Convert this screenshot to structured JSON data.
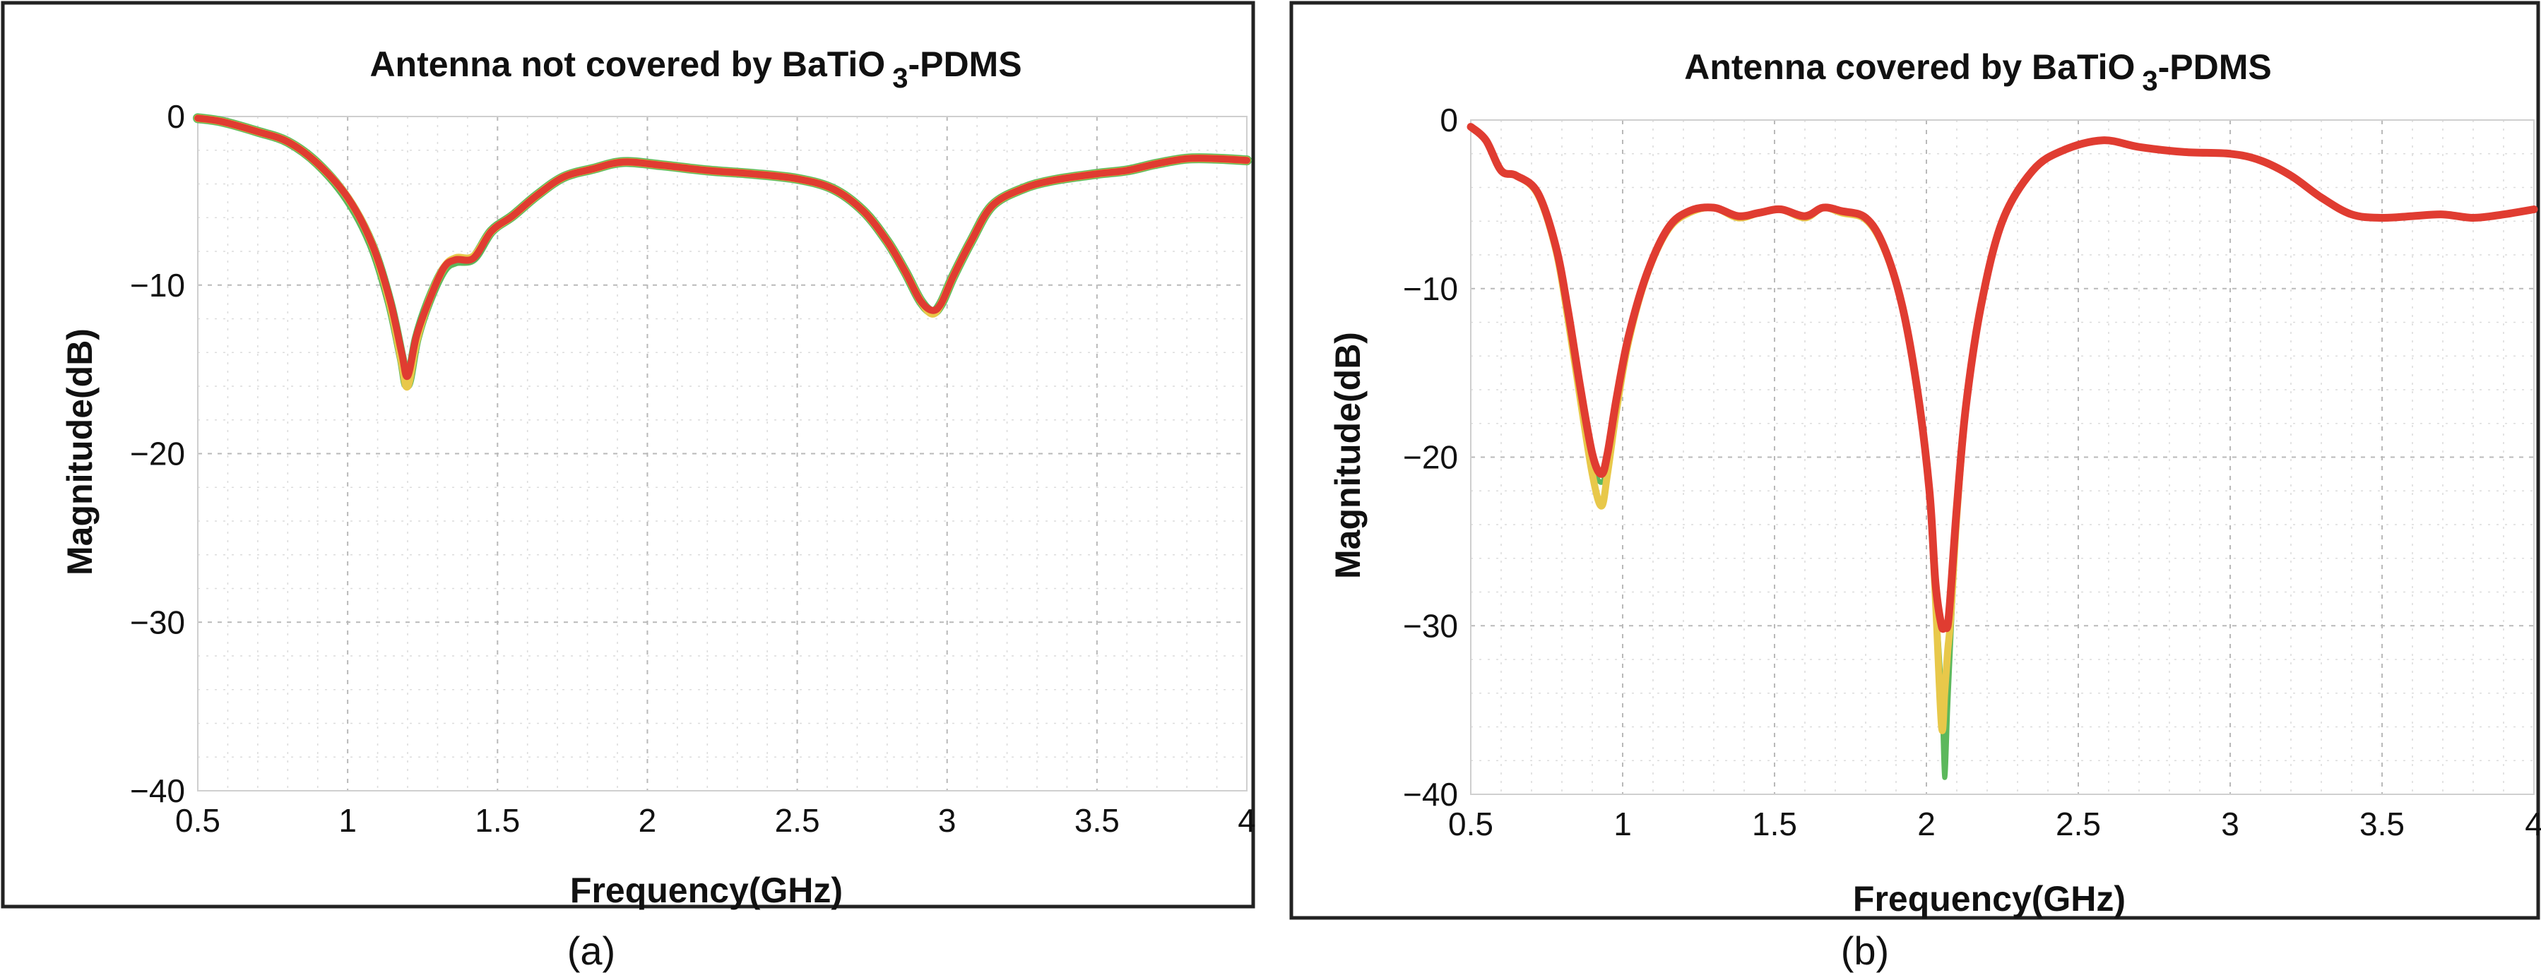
{
  "chart_data": [
    {
      "type": "line",
      "panel_label": "(a)",
      "title": "Antenna not covered by BaTiO",
      "title_subscript": "3",
      "title_suffix": "-PDMS",
      "xlabel": "Frequency(GHz)",
      "ylabel": "Magnitude(dB)",
      "xlim": [
        0.5,
        4
      ],
      "ylim": [
        -40,
        0
      ],
      "xticks": [
        0.5,
        1,
        1.5,
        2,
        2.5,
        3,
        3.5,
        4
      ],
      "xtick_labels": [
        "0.5",
        "1",
        "1.5",
        "2",
        "2.5",
        "3",
        "3.5",
        "4"
      ],
      "yticks": [
        0,
        -10,
        -20,
        -30,
        -40
      ],
      "ytick_labels": [
        "0",
        "−10",
        "−20",
        "−30",
        "−40"
      ],
      "grid": true,
      "series": [
        {
          "name": "trace-green",
          "color": "#5cb85c",
          "x": [
            0.5,
            0.58,
            0.7,
            0.8,
            0.9,
            1.0,
            1.08,
            1.14,
            1.18,
            1.2,
            1.23,
            1.27,
            1.32,
            1.36,
            1.42,
            1.48,
            1.55,
            1.63,
            1.72,
            1.82,
            1.92,
            2.05,
            2.2,
            2.35,
            2.5,
            2.62,
            2.72,
            2.8,
            2.86,
            2.91,
            2.95,
            2.98,
            3.02,
            3.08,
            3.15,
            3.25,
            3.35,
            3.5,
            3.6,
            3.7,
            3.8,
            3.9,
            4.0
          ],
          "y": [
            -0.1,
            -0.3,
            -0.9,
            -1.5,
            -2.8,
            -4.9,
            -7.6,
            -11.0,
            -14.3,
            -15.9,
            -13.2,
            -11.0,
            -9.1,
            -8.6,
            -8.4,
            -6.8,
            -5.9,
            -4.7,
            -3.6,
            -3.1,
            -2.7,
            -2.9,
            -3.2,
            -3.4,
            -3.7,
            -4.3,
            -5.6,
            -7.4,
            -9.2,
            -10.9,
            -11.6,
            -11.1,
            -9.5,
            -7.4,
            -5.3,
            -4.3,
            -3.8,
            -3.4,
            -3.2,
            -2.8,
            -2.5,
            -2.5,
            -2.6
          ]
        },
        {
          "name": "trace-yellow",
          "color": "#e8c84a",
          "x": [
            0.5,
            0.58,
            0.7,
            0.8,
            0.9,
            1.0,
            1.08,
            1.14,
            1.18,
            1.2,
            1.23,
            1.27,
            1.32,
            1.36,
            1.42,
            1.48,
            1.55,
            1.63,
            1.72,
            1.82,
            1.92,
            2.05,
            2.2,
            2.35,
            2.5,
            2.62,
            2.72,
            2.8,
            2.86,
            2.91,
            2.95,
            2.98,
            3.02,
            3.08,
            3.15,
            3.25,
            3.35,
            3.5,
            3.6,
            3.7,
            3.8,
            3.9,
            4.0
          ],
          "y": [
            -0.1,
            -0.3,
            -0.9,
            -1.5,
            -2.8,
            -4.8,
            -7.5,
            -11.0,
            -14.5,
            -16.0,
            -13.3,
            -11.0,
            -9.0,
            -8.4,
            -8.3,
            -6.8,
            -5.9,
            -4.7,
            -3.6,
            -3.1,
            -2.7,
            -2.9,
            -3.2,
            -3.4,
            -3.7,
            -4.3,
            -5.6,
            -7.4,
            -9.2,
            -10.9,
            -11.7,
            -11.1,
            -9.5,
            -7.4,
            -5.3,
            -4.3,
            -3.8,
            -3.4,
            -3.2,
            -2.8,
            -2.5,
            -2.5,
            -2.6
          ]
        },
        {
          "name": "trace-red",
          "color": "#e03c31",
          "x": [
            0.5,
            0.58,
            0.7,
            0.8,
            0.9,
            1.0,
            1.08,
            1.14,
            1.18,
            1.2,
            1.23,
            1.27,
            1.32,
            1.36,
            1.42,
            1.48,
            1.55,
            1.63,
            1.72,
            1.82,
            1.92,
            2.05,
            2.2,
            2.35,
            2.5,
            2.62,
            2.72,
            2.8,
            2.86,
            2.91,
            2.95,
            2.98,
            3.02,
            3.08,
            3.15,
            3.25,
            3.35,
            3.5,
            3.6,
            3.7,
            3.8,
            3.9,
            4.0
          ],
          "y": [
            -0.1,
            -0.3,
            -0.9,
            -1.5,
            -2.8,
            -4.8,
            -7.5,
            -10.8,
            -14.0,
            -15.4,
            -13.0,
            -11.0,
            -9.0,
            -8.5,
            -8.4,
            -6.8,
            -5.9,
            -4.7,
            -3.6,
            -3.1,
            -2.7,
            -2.9,
            -3.2,
            -3.4,
            -3.7,
            -4.3,
            -5.6,
            -7.4,
            -9.2,
            -10.9,
            -11.5,
            -11.1,
            -9.5,
            -7.4,
            -5.3,
            -4.3,
            -3.8,
            -3.4,
            -3.2,
            -2.8,
            -2.5,
            -2.5,
            -2.6
          ]
        }
      ]
    },
    {
      "type": "line",
      "panel_label": "(b)",
      "title": "Antenna covered by BaTiO",
      "title_subscript": "3",
      "title_suffix": "-PDMS",
      "xlabel": "Frequency(GHz)",
      "ylabel": "Magnitude(dB)",
      "xlim": [
        0.5,
        4
      ],
      "ylim": [
        -40,
        0
      ],
      "xticks": [
        0.5,
        1,
        1.5,
        2,
        2.5,
        3,
        3.5,
        4
      ],
      "xtick_labels": [
        "0.5",
        "1",
        "1.5",
        "2",
        "2.5",
        "3",
        "3.5",
        "4"
      ],
      "yticks": [
        0,
        -10,
        -20,
        -30,
        -40
      ],
      "ytick_labels": [
        "0",
        "−10",
        "−20",
        "−30",
        "−40"
      ],
      "grid": true,
      "series": [
        {
          "name": "trace-green",
          "color": "#5cb85c",
          "x": [
            0.5,
            0.55,
            0.6,
            0.65,
            0.72,
            0.78,
            0.82,
            0.86,
            0.9,
            0.93,
            0.95,
            0.98,
            1.02,
            1.08,
            1.15,
            1.22,
            1.3,
            1.38,
            1.45,
            1.52,
            1.6,
            1.66,
            1.72,
            1.8,
            1.86,
            1.92,
            1.97,
            2.01,
            2.03,
            2.05,
            2.06,
            2.07,
            2.08,
            2.1,
            2.13,
            2.18,
            2.25,
            2.35,
            2.45,
            2.58,
            2.7,
            2.85,
            3.0,
            3.1,
            3.2,
            3.3,
            3.4,
            3.5,
            3.6,
            3.7,
            3.8,
            3.9,
            4.0
          ],
          "y": [
            -0.4,
            -1.2,
            -3.0,
            -3.3,
            -4.3,
            -7.6,
            -11.5,
            -16.0,
            -20.3,
            -21.5,
            -20.3,
            -16.9,
            -13.0,
            -9.2,
            -6.5,
            -5.5,
            -5.2,
            -5.8,
            -5.5,
            -5.3,
            -5.8,
            -5.2,
            -5.5,
            -5.9,
            -7.6,
            -11.0,
            -16.0,
            -22.0,
            -28.0,
            -34.0,
            -39.0,
            -35.0,
            -31.0,
            -24.0,
            -17.0,
            -11.0,
            -6.0,
            -3.0,
            -1.8,
            -1.2,
            -1.6,
            -1.9,
            -2.0,
            -2.4,
            -3.3,
            -4.6,
            -5.6,
            -5.8,
            -5.7,
            -5.6,
            -5.8,
            -5.6,
            -5.3
          ]
        },
        {
          "name": "trace-yellow",
          "color": "#e8c84a",
          "x": [
            0.5,
            0.55,
            0.6,
            0.65,
            0.72,
            0.78,
            0.82,
            0.86,
            0.9,
            0.93,
            0.95,
            0.98,
            1.02,
            1.08,
            1.15,
            1.22,
            1.3,
            1.38,
            1.45,
            1.52,
            1.6,
            1.66,
            1.72,
            1.8,
            1.86,
            1.92,
            1.97,
            2.01,
            2.03,
            2.05,
            2.06,
            2.07,
            2.08,
            2.1,
            2.13,
            2.18,
            2.25,
            2.35,
            2.45,
            2.58,
            2.7,
            2.85,
            3.0,
            3.1,
            3.2,
            3.3,
            3.4,
            3.5,
            3.6,
            3.7,
            3.8,
            3.9,
            4.0
          ],
          "y": [
            -0.4,
            -1.2,
            -3.0,
            -3.3,
            -4.4,
            -7.7,
            -11.8,
            -16.5,
            -21.0,
            -22.9,
            -21.0,
            -17.2,
            -13.1,
            -9.2,
            -6.5,
            -5.5,
            -5.2,
            -5.8,
            -5.5,
            -5.3,
            -5.8,
            -5.2,
            -5.5,
            -5.9,
            -7.6,
            -11.0,
            -16.0,
            -22.0,
            -28.5,
            -36.0,
            -34.0,
            -31.5,
            -29.5,
            -23.5,
            -17.0,
            -11.0,
            -6.0,
            -3.0,
            -1.8,
            -1.2,
            -1.6,
            -1.9,
            -2.0,
            -2.4,
            -3.3,
            -4.6,
            -5.6,
            -5.8,
            -5.7,
            -5.6,
            -5.8,
            -5.6,
            -5.3
          ]
        },
        {
          "name": "trace-red",
          "color": "#e03c31",
          "x": [
            0.5,
            0.55,
            0.6,
            0.65,
            0.72,
            0.78,
            0.82,
            0.86,
            0.9,
            0.93,
            0.95,
            0.98,
            1.02,
            1.08,
            1.15,
            1.22,
            1.3,
            1.38,
            1.45,
            1.52,
            1.6,
            1.66,
            1.72,
            1.8,
            1.86,
            1.92,
            1.97,
            2.01,
            2.03,
            2.05,
            2.06,
            2.07,
            2.08,
            2.1,
            2.13,
            2.18,
            2.25,
            2.35,
            2.45,
            2.58,
            2.7,
            2.85,
            3.0,
            3.1,
            3.2,
            3.3,
            3.4,
            3.5,
            3.6,
            3.7,
            3.8,
            3.9,
            4.0
          ],
          "y": [
            -0.4,
            -1.2,
            -3.0,
            -3.3,
            -4.3,
            -7.5,
            -11.3,
            -15.8,
            -19.8,
            -21.0,
            -19.8,
            -16.5,
            -12.8,
            -9.1,
            -6.4,
            -5.4,
            -5.2,
            -5.7,
            -5.5,
            -5.3,
            -5.7,
            -5.2,
            -5.4,
            -5.8,
            -7.5,
            -11.0,
            -16.0,
            -22.0,
            -27.5,
            -30.0,
            -30.0,
            -30.0,
            -28.0,
            -23.0,
            -17.0,
            -11.0,
            -6.0,
            -3.0,
            -1.8,
            -1.2,
            -1.6,
            -1.9,
            -2.0,
            -2.4,
            -3.3,
            -4.6,
            -5.6,
            -5.8,
            -5.7,
            -5.6,
            -5.8,
            -5.6,
            -5.3
          ]
        }
      ]
    }
  ]
}
